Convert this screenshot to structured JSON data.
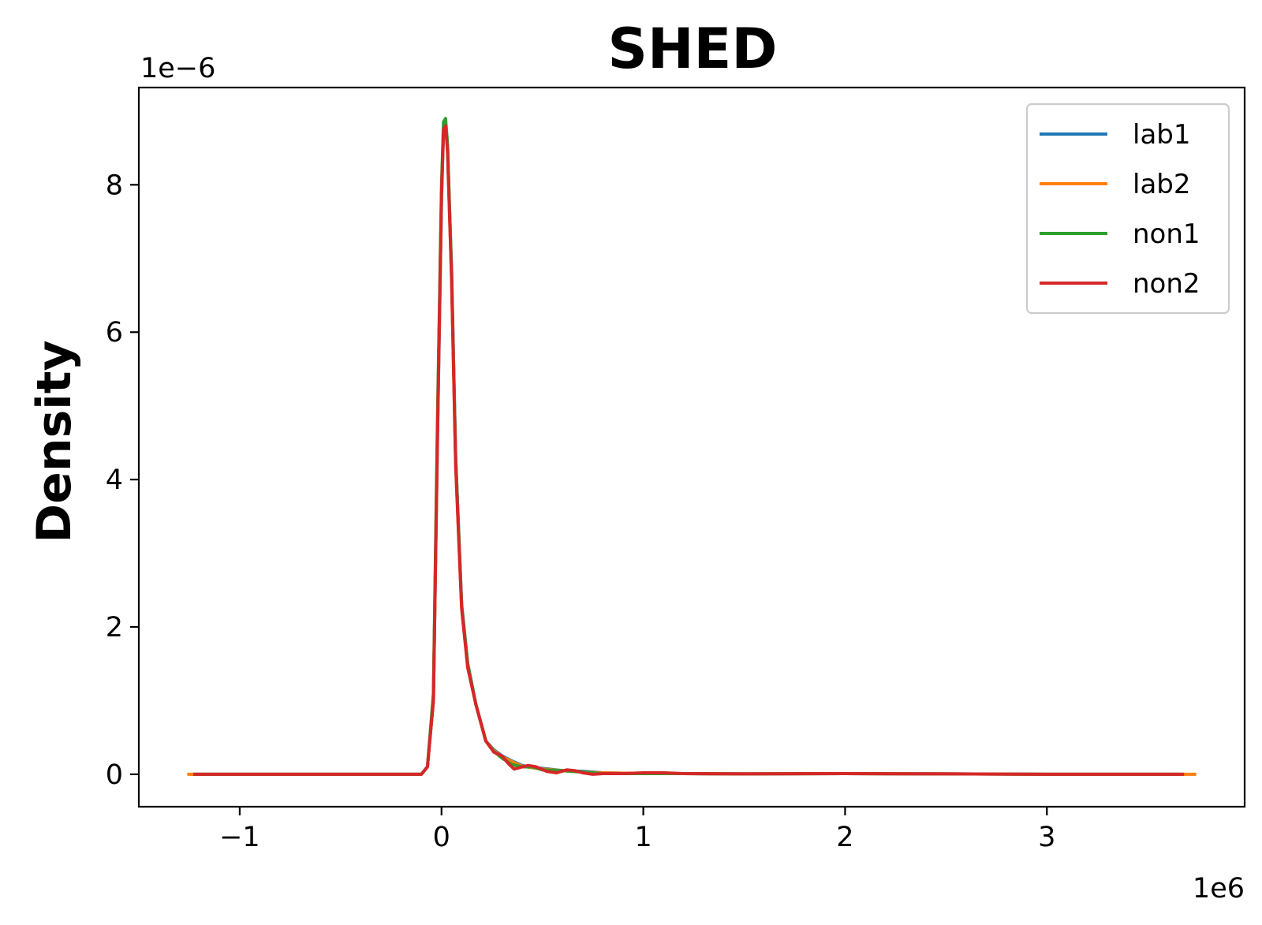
{
  "chart_data": {
    "type": "line",
    "title": "SHED",
    "xlabel": "",
    "ylabel": "Density",
    "x_offset_label": "1e6",
    "y_offset_label": "1e−6",
    "xlim": [
      -1.5,
      3.98
    ],
    "ylim": [
      -0.44,
      9.32
    ],
    "xticks": [
      -1,
      0,
      1,
      2,
      3
    ],
    "xtick_labels": [
      "−1",
      "0",
      "1",
      "2",
      "3"
    ],
    "yticks": [
      0,
      2,
      4,
      6,
      8
    ],
    "ytick_labels": [
      "0",
      "2",
      "4",
      "6",
      "8"
    ],
    "legend_position": "top-right",
    "grid": false,
    "series": [
      {
        "name": "lab1",
        "color": "#1f77b4",
        "x": [
          -1.24,
          -0.2,
          -0.1,
          -0.07,
          -0.04,
          -0.02,
          0.0,
          0.01,
          0.02,
          0.03,
          0.05,
          0.07,
          0.1,
          0.13,
          0.17,
          0.22,
          0.26,
          0.3,
          0.35,
          0.4,
          0.45,
          0.5,
          0.6,
          0.7,
          0.8,
          1.0,
          1.2,
          1.5,
          2.0,
          2.5,
          3.0,
          3.68
        ],
        "y": [
          0,
          0,
          0,
          0.1,
          1.0,
          4.5,
          7.8,
          8.75,
          8.85,
          8.5,
          6.8,
          4.3,
          2.3,
          1.5,
          0.95,
          0.45,
          0.33,
          0.25,
          0.18,
          0.12,
          0.09,
          0.08,
          0.05,
          0.04,
          0.02,
          0.01,
          0.01,
          0.005,
          0.01,
          0.005,
          0,
          0
        ]
      },
      {
        "name": "lab2",
        "color": "#ff7f0e",
        "x": [
          -1.26,
          -0.2,
          -0.1,
          -0.07,
          -0.04,
          -0.02,
          0.0,
          0.01,
          0.02,
          0.03,
          0.05,
          0.07,
          0.1,
          0.13,
          0.17,
          0.22,
          0.26,
          0.3,
          0.35,
          0.4,
          0.45,
          0.5,
          0.6,
          0.7,
          0.8,
          1.0,
          1.2,
          1.5,
          2.0,
          2.5,
          3.0,
          3.74
        ],
        "y": [
          0,
          0,
          0,
          0.1,
          1.0,
          4.6,
          7.9,
          8.8,
          8.85,
          8.5,
          6.7,
          4.2,
          2.25,
          1.45,
          0.95,
          0.45,
          0.32,
          0.24,
          0.17,
          0.11,
          0.09,
          0.07,
          0.05,
          0.03,
          0.02,
          0.01,
          0.01,
          0.005,
          0.01,
          0.005,
          0,
          0
        ]
      },
      {
        "name": "non1",
        "color": "#2ca02c",
        "x": [
          -1.22,
          -0.2,
          -0.1,
          -0.07,
          -0.04,
          -0.02,
          0.0,
          0.01,
          0.02,
          0.03,
          0.05,
          0.07,
          0.1,
          0.13,
          0.17,
          0.22,
          0.26,
          0.3,
          0.35,
          0.4,
          0.45,
          0.5,
          0.6,
          0.7,
          0.8,
          1.0,
          1.2,
          1.5,
          2.0,
          2.5,
          3.0,
          3.66
        ],
        "y": [
          0,
          0,
          0,
          0.1,
          1.1,
          4.8,
          8.0,
          8.85,
          8.9,
          8.55,
          6.8,
          4.3,
          2.3,
          1.5,
          0.95,
          0.45,
          0.31,
          0.22,
          0.13,
          0.1,
          0.1,
          0.06,
          0.05,
          0.03,
          0.01,
          0.01,
          0.01,
          0.005,
          0.01,
          0.005,
          0,
          0
        ]
      },
      {
        "name": "non2",
        "color": "#d62728",
        "x": [
          -1.23,
          -0.2,
          -0.1,
          -0.07,
          -0.04,
          -0.02,
          0.0,
          0.01,
          0.02,
          0.03,
          0.05,
          0.07,
          0.1,
          0.13,
          0.17,
          0.22,
          0.26,
          0.3,
          0.33,
          0.36,
          0.4,
          0.43,
          0.47,
          0.52,
          0.57,
          0.62,
          0.66,
          0.7,
          0.75,
          0.8,
          0.9,
          1.0,
          1.1,
          1.2,
          1.5,
          2.0,
          2.5,
          3.0,
          3.68
        ],
        "y": [
          0,
          0,
          0,
          0.1,
          1.0,
          4.6,
          7.9,
          8.75,
          8.8,
          8.45,
          6.7,
          4.2,
          2.25,
          1.45,
          0.95,
          0.45,
          0.3,
          0.25,
          0.15,
          0.07,
          0.1,
          0.12,
          0.1,
          0.04,
          0.02,
          0.06,
          0.05,
          0.02,
          0.0,
          0.01,
          0.01,
          0.02,
          0.02,
          0.01,
          0.005,
          0.01,
          0.005,
          0,
          0
        ]
      }
    ]
  }
}
